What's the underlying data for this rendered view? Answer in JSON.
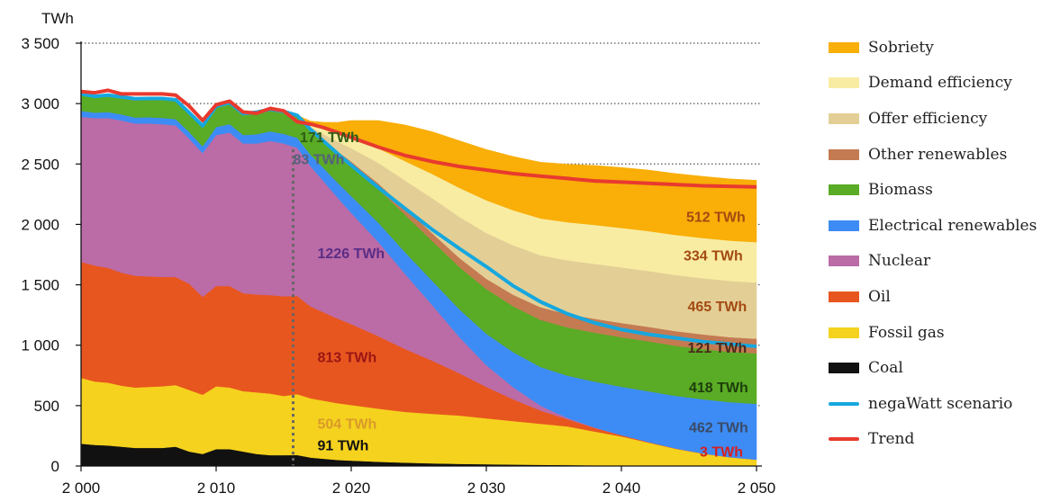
{
  "chart_data": {
    "type": "area",
    "ylabel": "TWh",
    "ylim": [
      0,
      3500
    ],
    "xlim": [
      2000,
      2050
    ],
    "y_ticks": [
      0,
      500,
      1000,
      1500,
      2000,
      2500,
      3000,
      3500
    ],
    "y_tick_labels": [
      "0",
      "500",
      "1 000",
      "1 500",
      "2 000",
      "2 500",
      "3 000",
      "3 500"
    ],
    "x_tick_labels": [
      "2 000",
      "2 010",
      "2 020",
      "2 030",
      "2 040",
      "2 050"
    ],
    "x_ticks": [
      2000,
      2010,
      2020,
      2030,
      2040,
      2050
    ],
    "grid": "horizontal dotted",
    "legend_position": "right",
    "x": [
      2000,
      2001,
      2002,
      2003,
      2004,
      2005,
      2006,
      2007,
      2008,
      2009,
      2010,
      2011,
      2012,
      2013,
      2014,
      2015,
      2016,
      2017,
      2018,
      2019,
      2020,
      2022,
      2024,
      2026,
      2028,
      2030,
      2032,
      2034,
      2036,
      2038,
      2040,
      2042,
      2044,
      2046,
      2048,
      2050
    ],
    "series": [
      {
        "name": "Coal",
        "color": "#111111",
        "values": [
          185,
          175,
          170,
          160,
          150,
          150,
          150,
          160,
          120,
          100,
          140,
          140,
          120,
          100,
          90,
          90,
          91,
          70,
          60,
          50,
          45,
          35,
          28,
          22,
          18,
          15,
          12,
          10,
          8,
          6,
          5,
          4,
          3,
          3,
          3,
          3
        ]
      },
      {
        "name": "Fossil gas",
        "color": "#f5d21e",
        "values": [
          545,
          525,
          520,
          505,
          500,
          505,
          510,
          510,
          510,
          490,
          520,
          510,
          500,
          510,
          510,
          490,
          504,
          490,
          480,
          470,
          460,
          440,
          420,
          410,
          400,
          380,
          360,
          340,
          320,
          280,
          240,
          190,
          140,
          100,
          70,
          50
        ]
      },
      {
        "name": "Oil",
        "color": "#e8561f",
        "values": [
          960,
          960,
          950,
          935,
          925,
          915,
          905,
          895,
          880,
          810,
          830,
          840,
          810,
          810,
          815,
          825,
          813,
          760,
          730,
          700,
          670,
          600,
          520,
          440,
          350,
          260,
          180,
          110,
          60,
          30,
          10,
          5,
          3,
          2,
          1,
          0
        ]
      },
      {
        "name": "Nuclear",
        "color": "#bb6ba6",
        "values": [
          1200,
          1220,
          1240,
          1260,
          1260,
          1265,
          1265,
          1255,
          1200,
          1190,
          1250,
          1270,
          1240,
          1250,
          1275,
          1265,
          1226,
          1160,
          1080,
          1000,
          920,
          780,
          620,
          460,
          300,
          180,
          100,
          40,
          10,
          3,
          1,
          0,
          0,
          0,
          0,
          0
        ]
      },
      {
        "name": "Electrical renewables",
        "color": "#3d8cf5",
        "values": [
          50,
          45,
          50,
          50,
          50,
          52,
          52,
          52,
          56,
          56,
          66,
          70,
          70,
          76,
          80,
          80,
          83,
          95,
          110,
          125,
          140,
          160,
          180,
          200,
          230,
          260,
          290,
          320,
          350,
          380,
          400,
          420,
          435,
          448,
          455,
          462
        ]
      },
      {
        "name": "Biomass",
        "color": "#5aab25",
        "values": [
          130,
          125,
          130,
          135,
          140,
          145,
          150,
          150,
          150,
          160,
          160,
          165,
          165,
          170,
          170,
          171,
          171,
          190,
          210,
          230,
          250,
          280,
          310,
          330,
          350,
          370,
          380,
          390,
          400,
          405,
          410,
          413,
          415,
          416,
          417,
          418
        ]
      },
      {
        "name": "Other renewables",
        "color": "#c47b52",
        "values": [
          10,
          10,
          10,
          10,
          10,
          10,
          10,
          10,
          10,
          10,
          12,
          12,
          12,
          13,
          13,
          14,
          15,
          20,
          25,
          30,
          35,
          45,
          55,
          65,
          75,
          85,
          95,
          105,
          110,
          115,
          118,
          120,
          121,
          121,
          121,
          121
        ]
      },
      {
        "name": "Offer efficiency",
        "color": "#e3cf96",
        "values": [
          0,
          0,
          0,
          0,
          0,
          0,
          0,
          0,
          0,
          0,
          0,
          0,
          0,
          0,
          0,
          0,
          0,
          20,
          50,
          80,
          110,
          170,
          230,
          290,
          340,
          380,
          410,
          430,
          445,
          455,
          460,
          463,
          464,
          465,
          465,
          465
        ]
      },
      {
        "name": "Demand efficiency",
        "color": "#f8eca2",
        "values": [
          0,
          0,
          0,
          0,
          0,
          0,
          0,
          0,
          0,
          0,
          0,
          0,
          0,
          0,
          0,
          0,
          0,
          20,
          40,
          60,
          80,
          120,
          160,
          200,
          240,
          270,
          290,
          305,
          315,
          322,
          327,
          330,
          332,
          333,
          334,
          334
        ]
      },
      {
        "name": "Sobriety",
        "color": "#f9ae08",
        "values": [
          0,
          0,
          0,
          0,
          0,
          0,
          0,
          0,
          0,
          0,
          0,
          0,
          0,
          0,
          0,
          0,
          0,
          30,
          60,
          100,
          150,
          230,
          300,
          350,
          390,
          420,
          445,
          465,
          480,
          492,
          500,
          505,
          508,
          510,
          511,
          512
        ]
      }
    ],
    "lines": [
      {
        "name": "negaWatt scenario",
        "color": "#16a7df",
        "x": [
          2000,
          2001,
          2002,
          2003,
          2004,
          2005,
          2006,
          2007,
          2008,
          2009,
          2010,
          2011,
          2012,
          2013,
          2014,
          2015,
          2016,
          2017,
          2018,
          2019,
          2020,
          2022,
          2024,
          2026,
          2028,
          2030,
          2032,
          2034,
          2036,
          2038,
          2040,
          2042,
          2044,
          2046,
          2048,
          2050
        ],
        "values": [
          3080,
          3060,
          3070,
          3055,
          3040,
          3042,
          3042,
          3032,
          2926,
          2816,
          2978,
          3007,
          2917,
          2929,
          2953,
          2935,
          2903,
          2785,
          2685,
          2585,
          2490,
          2305,
          2130,
          1957,
          1800,
          1650,
          1490,
          1360,
          1260,
          1185,
          1130,
          1090,
          1060,
          1030,
          1010,
          990
        ]
      },
      {
        "name": "Trend",
        "color": "#e83a2e",
        "x": [
          2000,
          2001,
          2002,
          2003,
          2004,
          2005,
          2006,
          2007,
          2008,
          2009,
          2010,
          2011,
          2012,
          2013,
          2014,
          2015,
          2016,
          2017,
          2018,
          2019,
          2020,
          2022,
          2024,
          2026,
          2028,
          2030,
          2032,
          2034,
          2036,
          2038,
          2040,
          2042,
          2044,
          2046,
          2048,
          2050
        ],
        "values": [
          3100,
          3090,
          3110,
          3080,
          3080,
          3080,
          3080,
          3070,
          2980,
          2860,
          2990,
          3020,
          2930,
          2920,
          2960,
          2940,
          2850,
          2830,
          2800,
          2760,
          2720,
          2640,
          2570,
          2520,
          2480,
          2450,
          2420,
          2400,
          2380,
          2360,
          2350,
          2340,
          2330,
          2320,
          2315,
          2310
        ]
      }
    ],
    "reference_line": {
      "x": 2015.7,
      "style": "dotted"
    },
    "annotations": [
      {
        "text": "171 TWh",
        "color": "#2f5c16",
        "x": 2016.2,
        "y": 2680
      },
      {
        "text": "83 TWh",
        "color": "#53617c",
        "x": 2015.7,
        "y": 2500
      },
      {
        "text": "1226 TWh",
        "color": "#5a2d86",
        "x": 2017.5,
        "y": 1720
      },
      {
        "text": "813 TWh",
        "color": "#9a1515",
        "x": 2017.5,
        "y": 860
      },
      {
        "text": "504 TWh",
        "color": "#d99a2b",
        "x": 2017.5,
        "y": 310
      },
      {
        "text": "91 TWh",
        "color": "#111111",
        "x": 2017.5,
        "y": 130
      },
      {
        "text": "512 TWh",
        "color": "#a34a12",
        "x": 2044.8,
        "y": 2020
      },
      {
        "text": "334 TWh",
        "color": "#a34a12",
        "x": 2044.6,
        "y": 1700
      },
      {
        "text": "465 TWh",
        "color": "#a34a12",
        "x": 2044.9,
        "y": 1280
      },
      {
        "text": "121 TWh",
        "color": "#4a2a1a",
        "x": 2044.9,
        "y": 940
      },
      {
        "text": "418 TWh",
        "color": "#1d3d0c",
        "x": 2045.0,
        "y": 610
      },
      {
        "text": "462 TWh",
        "color": "#3a4a66",
        "x": 2045.0,
        "y": 280
      },
      {
        "text": "3 TWh",
        "color": "#d42020",
        "x": 2045.8,
        "y": 80
      }
    ]
  },
  "legend": [
    {
      "label": "Sobriety",
      "color": "#f9ae08",
      "kind": "rect"
    },
    {
      "label": "Demand efficiency",
      "color": "#f8eca2",
      "kind": "rect"
    },
    {
      "label": "Offer efficiency",
      "color": "#e3cf96",
      "kind": "rect"
    },
    {
      "label": "Other renewables",
      "color": "#c47b52",
      "kind": "rect"
    },
    {
      "label": "Biomass",
      "color": "#5aab25",
      "kind": "rect"
    },
    {
      "label": "Electrical renewables",
      "color": "#3d8cf5",
      "kind": "rect"
    },
    {
      "label": "Nuclear",
      "color": "#bb6ba6",
      "kind": "rect"
    },
    {
      "label": "Oil",
      "color": "#e8561f",
      "kind": "rect"
    },
    {
      "label": "Fossil gas",
      "color": "#f5d21e",
      "kind": "rect"
    },
    {
      "label": "Coal",
      "color": "#111111",
      "kind": "rect"
    },
    {
      "label": "negaWatt scenario",
      "color": "#16a7df",
      "kind": "line"
    },
    {
      "label": "Trend",
      "color": "#e83a2e",
      "kind": "line"
    }
  ]
}
